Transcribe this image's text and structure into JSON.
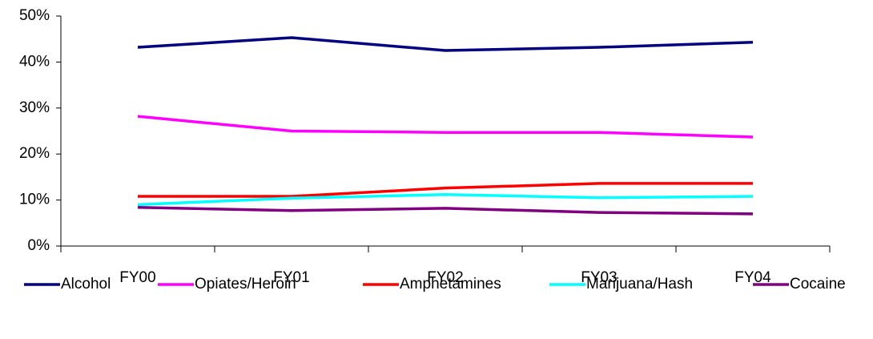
{
  "chart_data": {
    "type": "line",
    "categories": [
      "FY00",
      "FY01",
      "FY02",
      "FY03",
      "FY04"
    ],
    "series": [
      {
        "name": "Alcohol",
        "color": "#000080",
        "values": [
          43.2,
          45.3,
          42.5,
          43.2,
          44.3
        ]
      },
      {
        "name": "Opiates/Heroin",
        "color": "#ff00ff",
        "values": [
          28.2,
          25.0,
          24.7,
          24.7,
          23.7
        ]
      },
      {
        "name": "Amphetamines",
        "color": "#ff0000",
        "values": [
          10.8,
          10.8,
          12.6,
          13.6,
          13.6
        ]
      },
      {
        "name": "Marijuana/Hash",
        "color": "#00ffff",
        "values": [
          9.0,
          10.4,
          11.2,
          10.5,
          10.8
        ]
      },
      {
        "name": "Cocaine",
        "color": "#800080",
        "values": [
          8.4,
          7.7,
          8.2,
          7.3,
          7.0
        ]
      }
    ],
    "ylim": [
      0,
      50
    ],
    "yticks": [
      {
        "value": 0,
        "label": "0%"
      },
      {
        "value": 10,
        "label": "10%"
      },
      {
        "value": 20,
        "label": "20%"
      },
      {
        "value": 30,
        "label": "30%"
      },
      {
        "value": 40,
        "label": "40%"
      },
      {
        "value": 50,
        "label": "50%"
      }
    ],
    "grid": false,
    "legend": "bottom"
  }
}
